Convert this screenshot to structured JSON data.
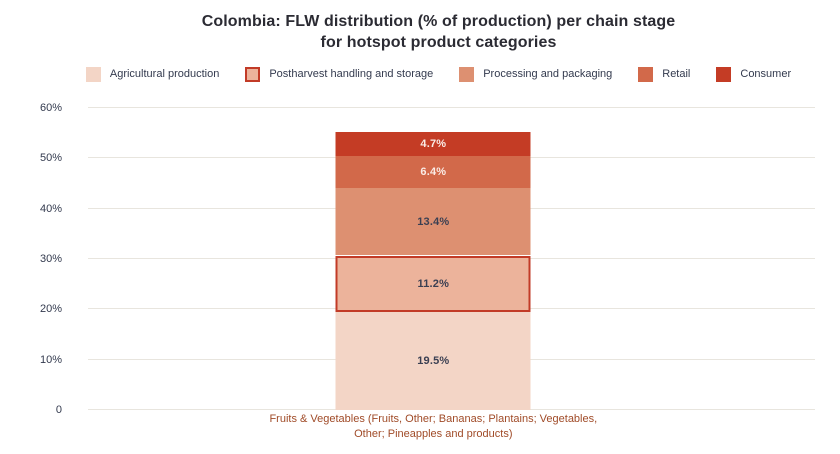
{
  "title": {
    "line1": "Colombia: FLW distribution (% of production) per chain stage",
    "line2": "for hotspot product categories"
  },
  "chart_data": {
    "type": "bar",
    "stacked": true,
    "title": "Colombia: FLW distribution (% of production) per chain stage for hotspot product categories",
    "categories": [
      "Fruits & Vegetables (Fruits, Other; Bananas; Plantains; Vegetables, Other; Pineapples and products)"
    ],
    "series": [
      {
        "name": "Agricultural production",
        "values": [
          19.5
        ],
        "label": "19.5%",
        "color": "#f3d5c6",
        "label_color": "#3a3f52",
        "border": null
      },
      {
        "name": "Postharvest handling and storage",
        "values": [
          11.2
        ],
        "label": "11.2%",
        "color": "#ecb39b",
        "label_color": "#3a3f52",
        "border": "#c23b27"
      },
      {
        "name": "Processing and packaging",
        "values": [
          13.4
        ],
        "label": "13.4%",
        "color": "#dd9071",
        "label_color": "#3a3f52",
        "border": null
      },
      {
        "name": "Retail",
        "values": [
          6.4
        ],
        "label": "6.4%",
        "color": "#d2694a",
        "label_color": "#faece6",
        "border": null
      },
      {
        "name": "Consumer",
        "values": [
          4.7
        ],
        "label": "4.7%",
        "color": "#c43c25",
        "label_color": "#faece6",
        "border": null
      }
    ],
    "total": 55.2,
    "xlabel": "",
    "ylabel": "",
    "ylim": [
      0,
      60
    ],
    "yticks": [
      {
        "value": 0,
        "label": "0"
      },
      {
        "value": 10,
        "label": "10%"
      },
      {
        "value": 20,
        "label": "20%"
      },
      {
        "value": 30,
        "label": "30%"
      },
      {
        "value": 40,
        "label": "40%"
      },
      {
        "value": 50,
        "label": "50%"
      },
      {
        "value": 60,
        "label": "60%"
      }
    ],
    "grid": true,
    "legend_position": "top"
  },
  "colors": {
    "background": "#ffffff",
    "grid": "#e8e5de",
    "axis_text": "#333a4e",
    "title_text": "#2b2b33",
    "category_text": "#a04b28"
  }
}
